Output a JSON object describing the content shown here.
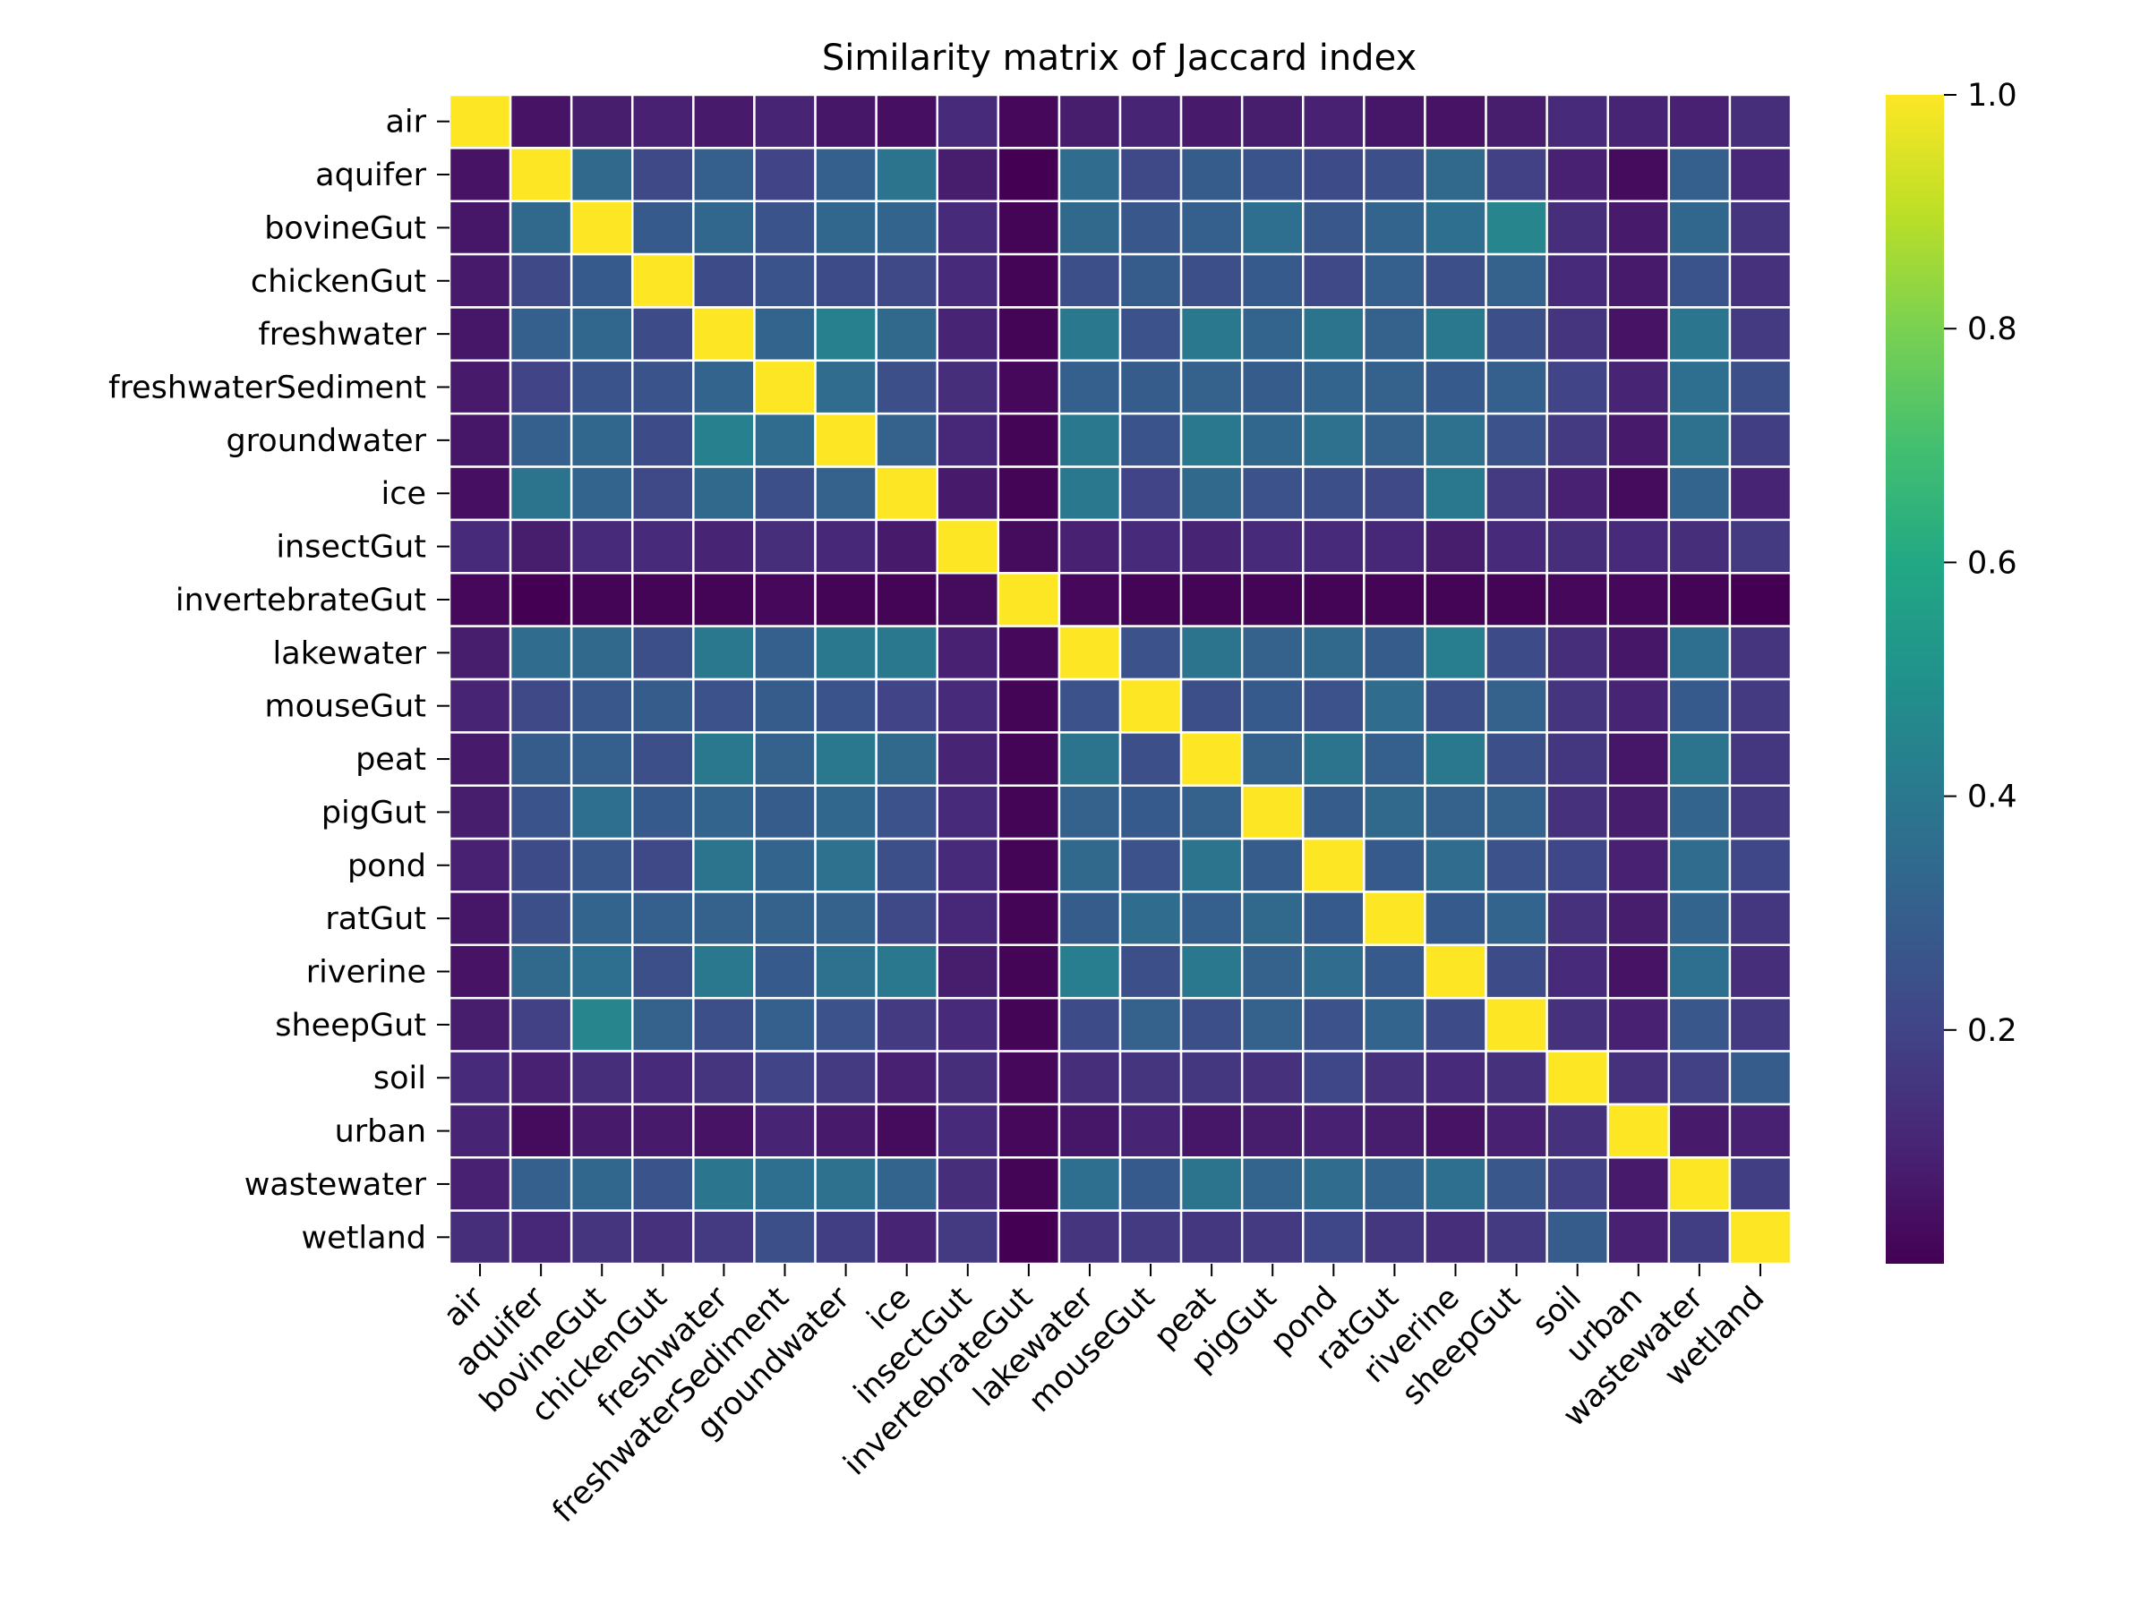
{
  "chart_data": {
    "type": "heatmap",
    "title": "Similarity matrix of Jaccard index",
    "xlabel": "",
    "ylabel": "",
    "categories": [
      "air",
      "aquifer",
      "bovineGut",
      "chickenGut",
      "freshwater",
      "freshwaterSediment",
      "groundwater",
      "ice",
      "insectGut",
      "invertebrateGut",
      "lakewater",
      "mouseGut",
      "peat",
      "pigGut",
      "pond",
      "ratGut",
      "riverine",
      "sheepGut",
      "soil",
      "urban",
      "wastewater",
      "wetland"
    ],
    "colormap": "viridis",
    "colorbar": {
      "min": 0.0,
      "max": 1.0,
      "ticks": [
        0.2,
        0.4,
        0.6,
        0.8,
        1.0
      ],
      "tick_labels": [
        "0.2",
        "0.4",
        "0.6",
        "0.8",
        "1.0"
      ]
    },
    "values": [
      [
        1.0,
        0.05,
        0.08,
        0.09,
        0.07,
        0.1,
        0.06,
        0.04,
        0.12,
        0.02,
        0.08,
        0.1,
        0.07,
        0.08,
        0.09,
        0.06,
        0.05,
        0.08,
        0.12,
        0.1,
        0.09,
        0.13
      ],
      [
        0.05,
        1.0,
        0.34,
        0.22,
        0.3,
        0.2,
        0.3,
        0.38,
        0.08,
        0.0,
        0.35,
        0.22,
        0.29,
        0.26,
        0.23,
        0.24,
        0.34,
        0.19,
        0.09,
        0.03,
        0.3,
        0.11
      ],
      [
        0.06,
        0.34,
        1.0,
        0.28,
        0.33,
        0.26,
        0.33,
        0.32,
        0.12,
        0.01,
        0.34,
        0.27,
        0.3,
        0.36,
        0.27,
        0.32,
        0.36,
        0.45,
        0.13,
        0.07,
        0.33,
        0.15
      ],
      [
        0.07,
        0.22,
        0.28,
        1.0,
        0.23,
        0.26,
        0.23,
        0.22,
        0.12,
        0.01,
        0.24,
        0.29,
        0.24,
        0.28,
        0.22,
        0.3,
        0.24,
        0.31,
        0.12,
        0.07,
        0.26,
        0.14
      ],
      [
        0.06,
        0.3,
        0.33,
        0.23,
        1.0,
        0.32,
        0.43,
        0.34,
        0.1,
        0.01,
        0.4,
        0.25,
        0.4,
        0.32,
        0.38,
        0.31,
        0.4,
        0.24,
        0.15,
        0.05,
        0.39,
        0.17
      ],
      [
        0.07,
        0.2,
        0.26,
        0.26,
        0.32,
        1.0,
        0.35,
        0.24,
        0.13,
        0.02,
        0.3,
        0.29,
        0.31,
        0.29,
        0.32,
        0.31,
        0.28,
        0.3,
        0.2,
        0.1,
        0.36,
        0.24
      ],
      [
        0.06,
        0.3,
        0.33,
        0.23,
        0.43,
        0.35,
        1.0,
        0.31,
        0.11,
        0.01,
        0.4,
        0.26,
        0.4,
        0.33,
        0.37,
        0.31,
        0.37,
        0.25,
        0.17,
        0.07,
        0.37,
        0.18
      ],
      [
        0.04,
        0.38,
        0.32,
        0.22,
        0.34,
        0.24,
        0.31,
        1.0,
        0.07,
        0.01,
        0.4,
        0.2,
        0.34,
        0.25,
        0.24,
        0.22,
        0.4,
        0.17,
        0.09,
        0.03,
        0.32,
        0.1
      ],
      [
        0.12,
        0.08,
        0.12,
        0.12,
        0.1,
        0.13,
        0.11,
        0.07,
        1.0,
        0.03,
        0.09,
        0.12,
        0.1,
        0.12,
        0.12,
        0.11,
        0.08,
        0.12,
        0.13,
        0.12,
        0.13,
        0.17
      ],
      [
        0.02,
        0.0,
        0.01,
        0.01,
        0.01,
        0.02,
        0.01,
        0.01,
        0.03,
        1.0,
        0.02,
        0.01,
        0.01,
        0.01,
        0.01,
        0.01,
        0.01,
        0.01,
        0.02,
        0.02,
        0.01,
        0.0
      ],
      [
        0.08,
        0.35,
        0.34,
        0.24,
        0.4,
        0.3,
        0.4,
        0.4,
        0.09,
        0.02,
        1.0,
        0.25,
        0.38,
        0.31,
        0.34,
        0.29,
        0.42,
        0.23,
        0.13,
        0.06,
        0.36,
        0.15
      ],
      [
        0.1,
        0.22,
        0.27,
        0.29,
        0.25,
        0.29,
        0.26,
        0.2,
        0.12,
        0.01,
        0.25,
        1.0,
        0.24,
        0.28,
        0.25,
        0.35,
        0.24,
        0.31,
        0.15,
        0.1,
        0.28,
        0.17
      ],
      [
        0.07,
        0.29,
        0.3,
        0.24,
        0.4,
        0.31,
        0.4,
        0.34,
        0.1,
        0.01,
        0.38,
        0.24,
        1.0,
        0.31,
        0.38,
        0.3,
        0.4,
        0.24,
        0.16,
        0.06,
        0.38,
        0.16
      ],
      [
        0.08,
        0.26,
        0.36,
        0.28,
        0.32,
        0.29,
        0.33,
        0.25,
        0.12,
        0.01,
        0.31,
        0.28,
        0.31,
        1.0,
        0.29,
        0.34,
        0.31,
        0.31,
        0.14,
        0.08,
        0.32,
        0.17
      ],
      [
        0.09,
        0.23,
        0.27,
        0.22,
        0.38,
        0.32,
        0.37,
        0.24,
        0.12,
        0.01,
        0.34,
        0.25,
        0.38,
        0.29,
        1.0,
        0.28,
        0.35,
        0.25,
        0.21,
        0.09,
        0.35,
        0.21
      ],
      [
        0.06,
        0.24,
        0.32,
        0.3,
        0.31,
        0.31,
        0.31,
        0.22,
        0.11,
        0.01,
        0.29,
        0.35,
        0.3,
        0.34,
        0.28,
        1.0,
        0.28,
        0.32,
        0.14,
        0.08,
        0.32,
        0.16
      ],
      [
        0.05,
        0.34,
        0.36,
        0.24,
        0.4,
        0.28,
        0.37,
        0.4,
        0.08,
        0.01,
        0.42,
        0.24,
        0.4,
        0.31,
        0.35,
        0.28,
        1.0,
        0.23,
        0.12,
        0.05,
        0.36,
        0.13
      ],
      [
        0.08,
        0.19,
        0.45,
        0.31,
        0.24,
        0.3,
        0.25,
        0.17,
        0.12,
        0.01,
        0.23,
        0.31,
        0.24,
        0.31,
        0.25,
        0.32,
        0.23,
        1.0,
        0.14,
        0.09,
        0.27,
        0.17
      ],
      [
        0.12,
        0.09,
        0.13,
        0.12,
        0.15,
        0.2,
        0.17,
        0.09,
        0.13,
        0.02,
        0.13,
        0.15,
        0.16,
        0.14,
        0.21,
        0.14,
        0.12,
        0.14,
        1.0,
        0.14,
        0.19,
        0.29
      ],
      [
        0.1,
        0.03,
        0.07,
        0.07,
        0.05,
        0.1,
        0.07,
        0.03,
        0.12,
        0.02,
        0.06,
        0.1,
        0.06,
        0.08,
        0.09,
        0.08,
        0.05,
        0.09,
        0.14,
        1.0,
        0.07,
        0.09
      ],
      [
        0.09,
        0.3,
        0.33,
        0.26,
        0.39,
        0.36,
        0.37,
        0.32,
        0.13,
        0.01,
        0.36,
        0.28,
        0.38,
        0.32,
        0.35,
        0.32,
        0.36,
        0.27,
        0.19,
        0.07,
        1.0,
        0.18
      ],
      [
        0.13,
        0.11,
        0.15,
        0.14,
        0.17,
        0.24,
        0.18,
        0.1,
        0.17,
        0.0,
        0.15,
        0.17,
        0.16,
        0.17,
        0.21,
        0.16,
        0.13,
        0.17,
        0.29,
        0.09,
        0.18,
        1.0
      ]
    ]
  }
}
